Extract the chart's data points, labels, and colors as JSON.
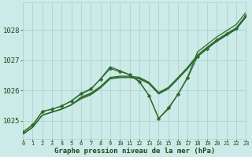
{
  "bg_color": "#cceae7",
  "grid_color": "#aad4d0",
  "line_color": "#2d6b2d",
  "xlabel": "Graphe pression niveau de la mer (hPa)",
  "xlabel_color": "#1a4a1a",
  "xlim": [
    0,
    23
  ],
  "ylim": [
    1024.4,
    1028.9
  ],
  "yticks": [
    1025,
    1026,
    1027,
    1028
  ],
  "xticks": [
    0,
    1,
    2,
    3,
    4,
    5,
    6,
    7,
    8,
    9,
    10,
    11,
    12,
    13,
    14,
    15,
    16,
    17,
    18,
    19,
    20,
    21,
    22,
    23
  ],
  "smooth_lines": [
    [
      1024.55,
      1024.78,
      1025.18,
      1025.28,
      1025.38,
      1025.52,
      1025.72,
      1025.85,
      1026.08,
      1026.38,
      1026.42,
      1026.42,
      1026.38,
      1026.22,
      1025.88,
      1026.05,
      1026.38,
      1026.72,
      1027.12,
      1027.38,
      1027.62,
      1027.82,
      1028.02,
      1028.42
    ],
    [
      1024.55,
      1024.78,
      1025.18,
      1025.28,
      1025.38,
      1025.52,
      1025.75,
      1025.88,
      1026.1,
      1026.4,
      1026.44,
      1026.44,
      1026.4,
      1026.24,
      1025.9,
      1026.07,
      1026.4,
      1026.74,
      1027.14,
      1027.4,
      1027.64,
      1027.84,
      1028.04,
      1028.44
    ],
    [
      1024.55,
      1024.78,
      1025.18,
      1025.28,
      1025.38,
      1025.52,
      1025.78,
      1025.91,
      1026.13,
      1026.43,
      1026.47,
      1026.47,
      1026.43,
      1026.27,
      1025.93,
      1026.1,
      1026.43,
      1026.77,
      1027.17,
      1027.43,
      1027.67,
      1027.87,
      1028.07,
      1028.47
    ]
  ],
  "marker_line": [
    1024.62,
    1024.85,
    1025.3,
    1025.38,
    1025.48,
    1025.65,
    1025.9,
    1026.05,
    1026.37,
    1026.72,
    1026.62,
    1026.52,
    1026.28,
    1025.83,
    1025.07,
    1025.42,
    1025.87,
    1026.42,
    1027.12,
    1027.37,
    1027.67,
    1027.87,
    1028.05,
    1028.48
  ],
  "zigzag_line": [
    1024.62,
    1024.85,
    1025.3,
    1025.38,
    1025.48,
    1025.65,
    1025.88,
    1026.03,
    1026.38,
    1026.78,
    1026.65,
    1026.52,
    1026.3,
    1025.83,
    1025.07,
    1025.38,
    1025.88,
    1026.45,
    1027.27,
    1027.52,
    1027.77,
    1027.97,
    1028.18,
    1028.58
  ],
  "line_width": 0.9,
  "marker_size": 2.5,
  "font_size_xlabel": 6.5,
  "font_size_ytick": 6.5,
  "font_size_xtick": 5.0
}
